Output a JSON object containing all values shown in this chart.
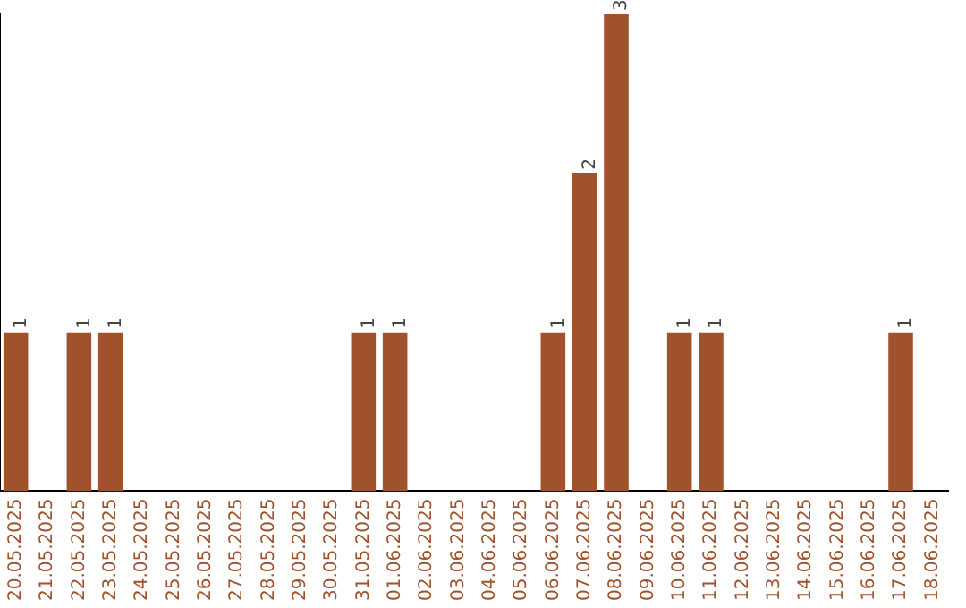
{
  "chart_data": {
    "type": "bar",
    "categories": [
      "20.05.2025",
      "21.05.2025",
      "22.05.2025",
      "23.05.2025",
      "24.05.2025",
      "25.05.2025",
      "26.05.2025",
      "27.05.2025",
      "28.05.2025",
      "29.05.2025",
      "30.05.2025",
      "31.05.2025",
      "01.06.2025",
      "02.06.2025",
      "03.06.2025",
      "04.06.2025",
      "05.06.2025",
      "06.06.2025",
      "07.06.2025",
      "08.06.2025",
      "09.06.2025",
      "10.06.2025",
      "11.06.2025",
      "12.06.2025",
      "13.06.2025",
      "14.06.2025",
      "15.06.2025",
      "16.06.2025",
      "17.06.2025",
      "18.06.2025"
    ],
    "values": [
      1,
      0,
      1,
      1,
      0,
      0,
      0,
      0,
      0,
      0,
      0,
      1,
      1,
      0,
      0,
      0,
      0,
      1,
      2,
      3,
      0,
      1,
      1,
      0,
      0,
      0,
      0,
      0,
      1,
      0
    ],
    "value_labels": [
      "1",
      null,
      "1",
      "1",
      null,
      null,
      null,
      null,
      null,
      null,
      null,
      "1",
      "1",
      null,
      null,
      null,
      null,
      "1",
      "2",
      "3",
      null,
      "1",
      "1",
      null,
      null,
      null,
      null,
      null,
      "1",
      null
    ],
    "color": "#a0522d",
    "grid": false,
    "legend": false,
    "tick_labels": "x"
  }
}
